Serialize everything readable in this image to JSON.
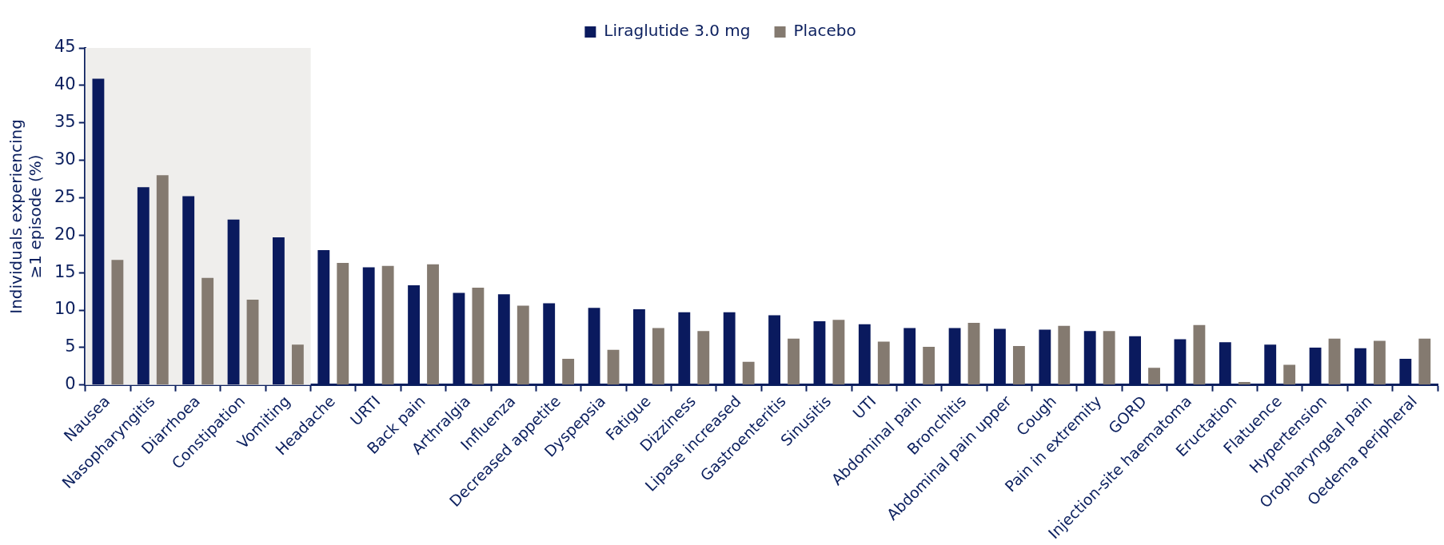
{
  "chart_data": {
    "type": "bar",
    "ylabel": "Individuals experiencing ≥1 episode (%)",
    "categories": [
      "Nausea",
      "Nasopharyngitis",
      "Diarrhoea",
      "Constipation",
      "Vomiting",
      "Headache",
      "URTI",
      "Back pain",
      "Arthralgia",
      "Influenza",
      "Decreased appetite",
      "Dyspepsia",
      "Fatigue",
      "Dizziness",
      "Lipase increased",
      "Gastroenteritis",
      "Sinusitis",
      "UTI",
      "Abdominal pain",
      "Bronchitis",
      "Abdominal pain upper",
      "Cough",
      "Pain in extremity",
      "GORD",
      "Injection-site haematoma",
      "Eructation",
      "Flatuence",
      "Hypertension",
      "Oropharyngeal pain",
      "Oedema peripheral"
    ],
    "series": [
      {
        "name": "Liraglutide 3.0 mg",
        "color": "#0a1a5e",
        "values": [
          40.9,
          26.4,
          25.2,
          22.1,
          19.7,
          18.0,
          15.7,
          13.3,
          12.3,
          12.1,
          10.9,
          10.3,
          10.1,
          9.7,
          9.7,
          9.3,
          8.5,
          8.1,
          7.6,
          7.6,
          7.5,
          7.4,
          7.2,
          6.5,
          6.1,
          5.7,
          5.4,
          5.0,
          4.9,
          3.5
        ]
      },
      {
        "name": "Placebo",
        "color": "#847a70",
        "values": [
          16.7,
          28.0,
          14.3,
          11.4,
          5.4,
          16.3,
          15.9,
          16.1,
          13.0,
          10.6,
          3.5,
          4.7,
          7.6,
          7.2,
          3.1,
          6.2,
          8.7,
          5.8,
          5.1,
          8.3,
          5.2,
          7.9,
          7.2,
          2.3,
          8.0,
          0.4,
          2.7,
          6.2,
          5.9,
          6.2
        ]
      }
    ],
    "ylim": [
      0,
      45
    ],
    "yticks": [
      0,
      5,
      10,
      15,
      20,
      25,
      30,
      35,
      40,
      45
    ],
    "bands": [
      {
        "axis": "x",
        "from": "Nausea",
        "to": "Vomiting",
        "color": "#efeeec"
      }
    ],
    "grid": false,
    "legend": "top"
  }
}
